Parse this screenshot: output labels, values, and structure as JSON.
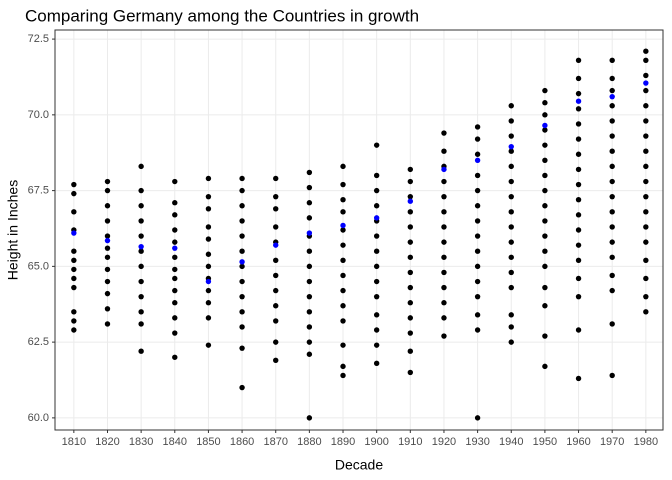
{
  "chart_data": {
    "type": "scatter",
    "title": "Comparing Germany among the Countries in growth",
    "x_label": "Decade",
    "y_label": "Height in Inches",
    "xlim": [
      1804.4,
      1985.1
    ],
    "xticks": [
      1810,
      1820,
      1830,
      1840,
      1850,
      1860,
      1870,
      1880,
      1890,
      1900,
      1910,
      1920,
      1930,
      1940,
      1950,
      1960,
      1970,
      1980
    ],
    "ylim": [
      59.6,
      72.8
    ],
    "yticks": [
      {
        "value": 60,
        "label": "60.0"
      },
      62.5,
      {
        "value": 65,
        "label": "65.0"
      },
      67.5,
      {
        "value": 70,
        "label": "70.0"
      },
      72.5
    ],
    "grid": true,
    "series": [
      {
        "color": "#000000",
        "x": [
          1810,
          1810,
          1810,
          1810,
          1810,
          1810,
          1810,
          1810,
          1810,
          1810,
          1810,
          1810,
          1820,
          1820,
          1820,
          1820,
          1820,
          1820,
          1820,
          1820,
          1820,
          1820,
          1820,
          1820,
          1830,
          1830,
          1830,
          1830,
          1830,
          1830,
          1830,
          1830,
          1830,
          1830,
          1830,
          1830,
          1840,
          1840,
          1840,
          1840,
          1840,
          1840,
          1840,
          1840,
          1840,
          1840,
          1840,
          1840,
          1840,
          1850,
          1850,
          1850,
          1850,
          1850,
          1850,
          1850,
          1850,
          1850,
          1850,
          1850,
          1850,
          1860,
          1860,
          1860,
          1860,
          1860,
          1860,
          1860,
          1860,
          1860,
          1860,
          1860,
          1860,
          1860,
          1870,
          1870,
          1870,
          1870,
          1870,
          1870,
          1870,
          1870,
          1870,
          1870,
          1870,
          1870,
          1880,
          1880,
          1880,
          1880,
          1880,
          1880,
          1880,
          1880,
          1880,
          1880,
          1880,
          1880,
          1880,
          1880,
          1890,
          1890,
          1890,
          1890,
          1890,
          1890,
          1890,
          1890,
          1890,
          1890,
          1890,
          1890,
          1890,
          1890,
          1900,
          1900,
          1900,
          1900,
          1900,
          1900,
          1900,
          1900,
          1900,
          1900,
          1900,
          1900,
          1900,
          1900,
          1910,
          1910,
          1910,
          1910,
          1910,
          1910,
          1910,
          1910,
          1910,
          1910,
          1910,
          1910,
          1910,
          1910,
          1920,
          1920,
          1920,
          1920,
          1920,
          1920,
          1920,
          1920,
          1920,
          1920,
          1920,
          1920,
          1920,
          1920,
          1930,
          1930,
          1930,
          1930,
          1930,
          1930,
          1930,
          1930,
          1930,
          1930,
          1930,
          1930,
          1930,
          1930,
          1930,
          1940,
          1940,
          1940,
          1940,
          1940,
          1940,
          1940,
          1940,
          1940,
          1940,
          1940,
          1940,
          1940,
          1940,
          1940,
          1940,
          1950,
          1950,
          1950,
          1950,
          1950,
          1950,
          1950,
          1950,
          1950,
          1950,
          1950,
          1950,
          1950,
          1950,
          1950,
          1950,
          1950,
          1960,
          1960,
          1960,
          1960,
          1960,
          1960,
          1960,
          1960,
          1960,
          1960,
          1960,
          1960,
          1960,
          1960,
          1960,
          1960,
          1960,
          1960,
          1970,
          1970,
          1970,
          1970,
          1970,
          1970,
          1970,
          1970,
          1970,
          1970,
          1970,
          1970,
          1970,
          1970,
          1970,
          1970,
          1970,
          1970,
          1980,
          1980,
          1980,
          1980,
          1980,
          1980,
          1980,
          1980,
          1980,
          1980,
          1980,
          1980,
          1980,
          1980,
          1980,
          1980,
          1980,
          1980
        ],
        "y": [
          67.7,
          67.4,
          66.8,
          66.2,
          65.5,
          65.2,
          64.9,
          64.6,
          64.3,
          63.5,
          63.2,
          62.9,
          67.8,
          67.5,
          67.0,
          66.5,
          66.0,
          65.6,
          65.3,
          64.9,
          64.5,
          64.1,
          63.6,
          63.1,
          68.3,
          67.5,
          67.0,
          66.5,
          66.0,
          65.5,
          65.0,
          64.5,
          64.0,
          63.5,
          63.1,
          62.2,
          67.8,
          67.1,
          66.7,
          66.2,
          65.8,
          65.3,
          64.9,
          64.6,
          64.2,
          63.8,
          63.3,
          62.8,
          62.0,
          67.9,
          67.3,
          66.9,
          66.3,
          65.9,
          65.4,
          65.0,
          64.6,
          64.2,
          63.8,
          63.3,
          62.4,
          67.9,
          67.5,
          67.0,
          66.5,
          66.0,
          65.5,
          65.0,
          64.5,
          64.0,
          63.5,
          63.0,
          62.3,
          61.0,
          67.9,
          67.3,
          66.9,
          66.3,
          65.8,
          65.2,
          64.7,
          64.2,
          63.7,
          63.2,
          62.5,
          61.9,
          68.1,
          67.6,
          67.1,
          66.6,
          66.0,
          65.5,
          65.0,
          64.5,
          64.0,
          63.5,
          63.0,
          62.5,
          62.1,
          60.0,
          68.3,
          67.7,
          67.2,
          66.8,
          66.2,
          65.7,
          65.2,
          64.7,
          64.2,
          63.7,
          63.2,
          62.4,
          61.7,
          61.4,
          69.0,
          68.0,
          67.5,
          67.0,
          66.5,
          66.0,
          65.5,
          65.0,
          64.5,
          64.0,
          63.4,
          62.9,
          62.4,
          61.8,
          68.2,
          67.8,
          67.3,
          66.8,
          66.3,
          65.8,
          65.3,
          64.8,
          64.3,
          63.8,
          63.3,
          62.8,
          62.2,
          61.5,
          69.4,
          68.8,
          68.3,
          67.8,
          67.3,
          66.8,
          66.3,
          65.8,
          65.3,
          64.8,
          64.3,
          63.8,
          63.3,
          62.7,
          69.6,
          69.2,
          68.7,
          68.0,
          67.5,
          67.0,
          66.5,
          66.0,
          65.5,
          65.0,
          64.5,
          64.0,
          63.4,
          62.9,
          60.0,
          70.3,
          69.8,
          69.3,
          68.8,
          68.3,
          67.8,
          67.3,
          66.8,
          66.3,
          65.8,
          65.3,
          64.8,
          64.3,
          63.4,
          63.0,
          62.5,
          70.8,
          70.4,
          70.0,
          69.5,
          69.0,
          68.5,
          68.0,
          67.5,
          67.0,
          66.5,
          66.0,
          65.5,
          65.0,
          64.3,
          63.7,
          62.7,
          61.7,
          71.8,
          71.2,
          70.7,
          70.2,
          69.7,
          69.2,
          68.7,
          68.2,
          67.7,
          67.2,
          66.7,
          66.2,
          65.7,
          65.2,
          64.6,
          64.0,
          62.9,
          61.3,
          71.8,
          71.2,
          70.8,
          70.3,
          69.8,
          69.3,
          68.8,
          68.3,
          67.8,
          67.3,
          66.8,
          66.3,
          65.8,
          65.3,
          64.7,
          64.2,
          63.1,
          61.4,
          72.1,
          71.8,
          71.3,
          70.8,
          70.3,
          69.8,
          69.3,
          68.8,
          68.3,
          67.8,
          67.3,
          66.8,
          66.3,
          65.8,
          65.2,
          64.6,
          64.0,
          63.5
        ]
      },
      {
        "color": "#0000ff",
        "x": [
          1810,
          1820,
          1830,
          1840,
          1850,
          1860,
          1870,
          1880,
          1890,
          1900,
          1910,
          1920,
          1930,
          1940,
          1950,
          1960,
          1970,
          1980
        ],
        "y": [
          66.1,
          65.85,
          65.65,
          65.6,
          64.5,
          65.15,
          65.7,
          66.1,
          66.35,
          66.6,
          67.15,
          68.2,
          68.5,
          68.95,
          69.65,
          70.45,
          70.6,
          71.05
        ]
      }
    ]
  }
}
